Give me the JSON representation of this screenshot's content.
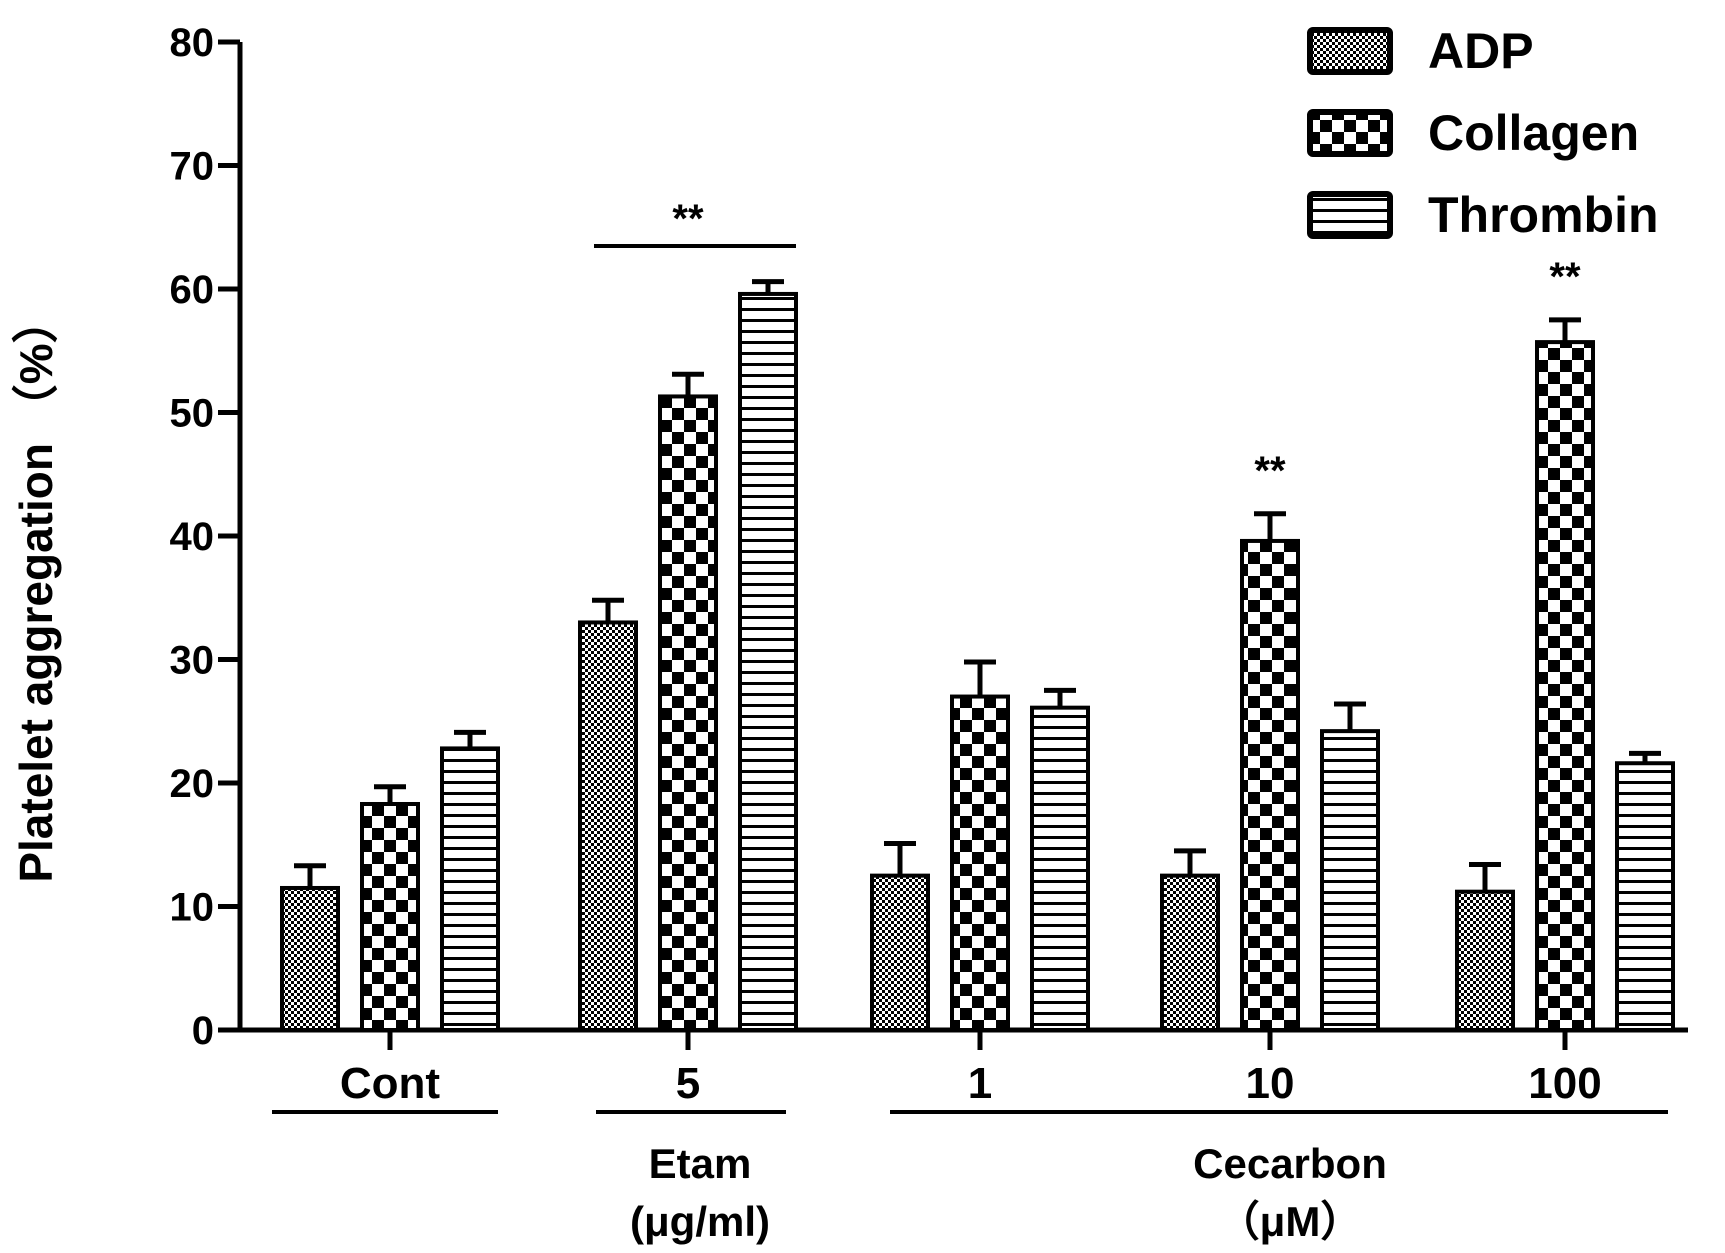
{
  "chart_data": {
    "type": "bar",
    "title": "",
    "ylabel": "Platelet aggregation （%）",
    "ylim": [
      0,
      80
    ],
    "yticks": [
      0,
      10,
      20,
      30,
      40,
      50,
      60,
      70,
      80
    ],
    "categories": [
      "Cont",
      "5",
      "1",
      "10",
      "100"
    ],
    "category_groups": [
      {
        "label_lines": [
          "Etam",
          "(μg/ml)"
        ],
        "categories": [
          "5"
        ]
      },
      {
        "label_lines": [
          "Cecarbon",
          "（μM）"
        ],
        "categories": [
          "1",
          "10",
          "100"
        ]
      }
    ],
    "series": [
      {
        "name": "ADP",
        "pattern": "fine-check",
        "values": [
          11.5,
          33,
          12.5,
          12.5,
          11.2
        ],
        "errors": [
          1.8,
          1.8,
          2.6,
          2.0,
          2.2
        ]
      },
      {
        "name": "Collagen",
        "pattern": "checkerboard",
        "values": [
          18.3,
          51.3,
          27,
          39.6,
          55.7
        ],
        "errors": [
          1.4,
          1.8,
          2.8,
          2.2,
          1.8
        ]
      },
      {
        "name": "Thrombin",
        "pattern": "horizontal-lines",
        "values": [
          22.8,
          59.6,
          26.1,
          24.2,
          21.6
        ],
        "errors": [
          1.3,
          1.0,
          1.4,
          2.2,
          0.8
        ]
      }
    ],
    "annotations": [
      {
        "text": "**",
        "target": "group",
        "categories": [
          "5"
        ],
        "with_bracket": true
      },
      {
        "text": "**",
        "target": "bar",
        "category": "10",
        "series": "Collagen"
      },
      {
        "text": "**",
        "target": "bar",
        "category": "100",
        "series": "Collagen"
      }
    ],
    "legend": {
      "position": "top-right",
      "entries": [
        "ADP",
        "Collagen",
        "Thrombin"
      ]
    },
    "grid": false
  }
}
